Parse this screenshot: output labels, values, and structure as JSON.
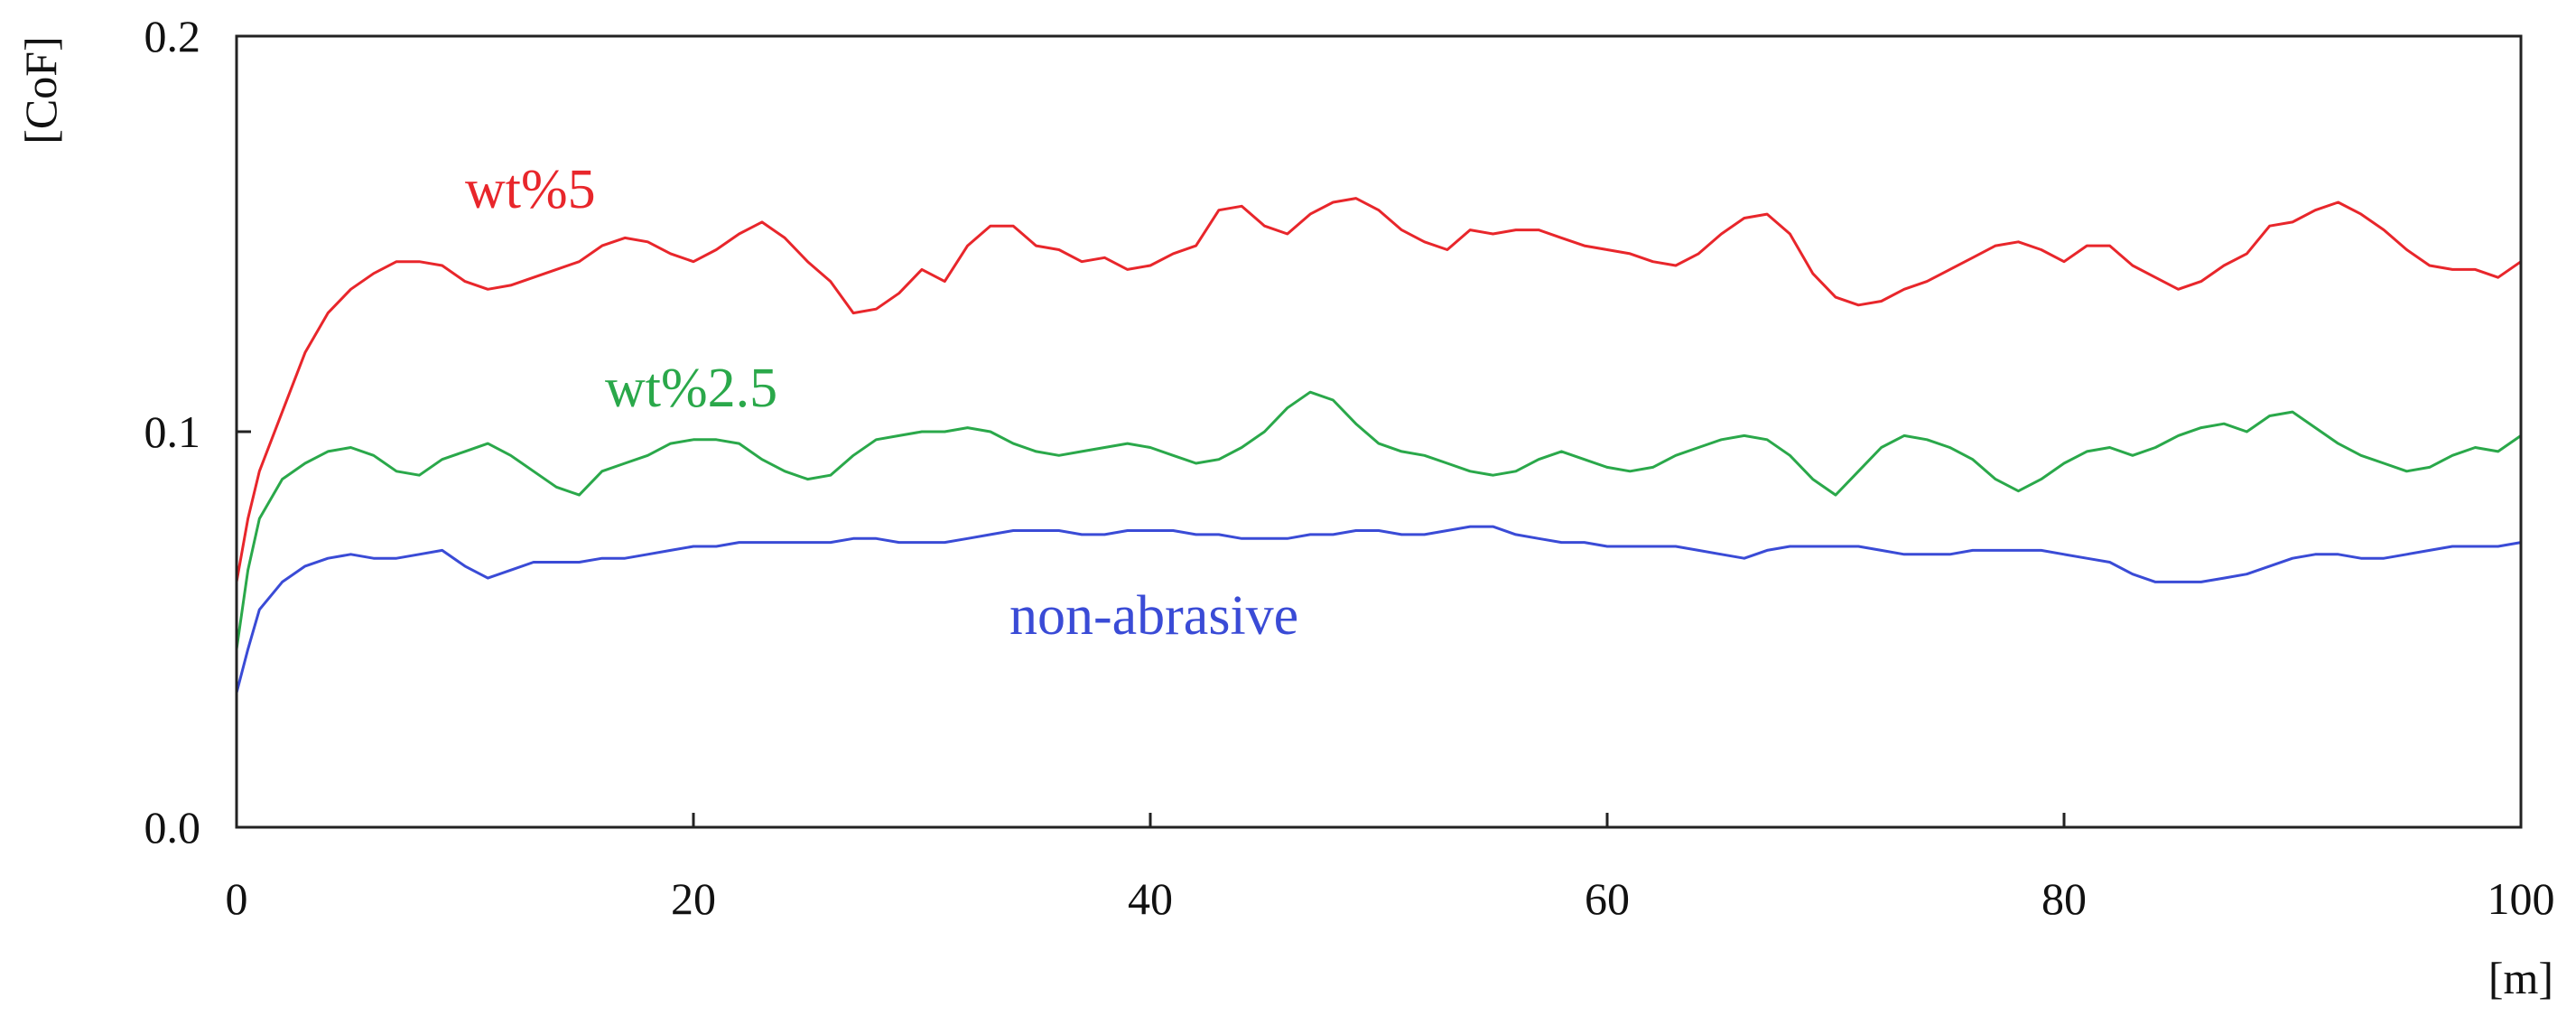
{
  "chart_data": {
    "type": "line",
    "title": "",
    "xlabel": "[m]",
    "ylabel": "[CoF]",
    "xlim": [
      0,
      100
    ],
    "ylim": [
      0,
      0.2
    ],
    "x_ticks": [
      0,
      20,
      40,
      60,
      80,
      100
    ],
    "x_tick_labels": [
      "0",
      "20",
      "40",
      "60",
      "80",
      "100"
    ],
    "y_ticks": [
      0,
      0.1,
      0.2
    ],
    "y_tick_labels": [
      "0.0",
      "0.1",
      "0.2"
    ],
    "grid": false,
    "legend": "none (series labelled inline)",
    "series": [
      {
        "name": "wt%5",
        "color": "#e8262b",
        "x": [
          0,
          0.5,
          1,
          2,
          3,
          4,
          5,
          6,
          7,
          8,
          9,
          10,
          11,
          12,
          13,
          14,
          15,
          16,
          17,
          18,
          19,
          20,
          21,
          22,
          23,
          24,
          25,
          26,
          27,
          28,
          29,
          30,
          31,
          32,
          33,
          34,
          35,
          36,
          37,
          38,
          39,
          40,
          41,
          42,
          43,
          44,
          45,
          46,
          47,
          48,
          49,
          50,
          51,
          52,
          53,
          54,
          55,
          56,
          57,
          58,
          59,
          60,
          61,
          62,
          63,
          64,
          65,
          66,
          67,
          68,
          69,
          70,
          71,
          72,
          73,
          74,
          75,
          76,
          77,
          78,
          79,
          80,
          81,
          82,
          83,
          84,
          85,
          86,
          87,
          88,
          89,
          90,
          91,
          92,
          93,
          94,
          95,
          96,
          97,
          98,
          99,
          100
        ],
        "values": [
          0.062,
          0.078,
          0.09,
          0.105,
          0.12,
          0.13,
          0.136,
          0.14,
          0.143,
          0.143,
          0.142,
          0.138,
          0.136,
          0.137,
          0.139,
          0.141,
          0.143,
          0.147,
          0.149,
          0.148,
          0.145,
          0.143,
          0.146,
          0.15,
          0.153,
          0.149,
          0.143,
          0.138,
          0.13,
          0.131,
          0.135,
          0.141,
          0.138,
          0.147,
          0.152,
          0.152,
          0.147,
          0.146,
          0.143,
          0.144,
          0.141,
          0.142,
          0.145,
          0.147,
          0.156,
          0.157,
          0.152,
          0.15,
          0.155,
          0.158,
          0.159,
          0.156,
          0.151,
          0.148,
          0.146,
          0.151,
          0.15,
          0.151,
          0.151,
          0.149,
          0.147,
          0.146,
          0.145,
          0.143,
          0.142,
          0.145,
          0.15,
          0.154,
          0.155,
          0.15,
          0.14,
          0.134,
          0.132,
          0.133,
          0.136,
          0.138,
          0.141,
          0.144,
          0.147,
          0.148,
          0.146,
          0.143,
          0.147,
          0.147,
          0.142,
          0.139,
          0.136,
          0.138,
          0.142,
          0.145,
          0.152,
          0.153,
          0.156,
          0.158,
          0.155,
          0.151,
          0.146,
          0.142,
          0.141,
          0.141,
          0.139,
          0.143
        ]
      },
      {
        "name": "wt%2.5",
        "color": "#2aa84a",
        "x": [
          0,
          0.5,
          1,
          2,
          3,
          4,
          5,
          6,
          7,
          8,
          9,
          10,
          11,
          12,
          13,
          14,
          15,
          16,
          17,
          18,
          19,
          20,
          21,
          22,
          23,
          24,
          25,
          26,
          27,
          28,
          29,
          30,
          31,
          32,
          33,
          34,
          35,
          36,
          37,
          38,
          39,
          40,
          41,
          42,
          43,
          44,
          45,
          46,
          47,
          48,
          49,
          50,
          51,
          52,
          53,
          54,
          55,
          56,
          57,
          58,
          59,
          60,
          61,
          62,
          63,
          64,
          65,
          66,
          67,
          68,
          69,
          70,
          71,
          72,
          73,
          74,
          75,
          76,
          77,
          78,
          79,
          80,
          81,
          82,
          83,
          84,
          85,
          86,
          87,
          88,
          89,
          90,
          91,
          92,
          93,
          94,
          95,
          96,
          97,
          98,
          99,
          100
        ],
        "values": [
          0.045,
          0.065,
          0.078,
          0.088,
          0.092,
          0.095,
          0.096,
          0.094,
          0.09,
          0.089,
          0.093,
          0.095,
          0.097,
          0.094,
          0.09,
          0.086,
          0.084,
          0.09,
          0.092,
          0.094,
          0.097,
          0.098,
          0.098,
          0.097,
          0.093,
          0.09,
          0.088,
          0.089,
          0.094,
          0.098,
          0.099,
          0.1,
          0.1,
          0.101,
          0.1,
          0.097,
          0.095,
          0.094,
          0.095,
          0.096,
          0.097,
          0.096,
          0.094,
          0.092,
          0.093,
          0.096,
          0.1,
          0.106,
          0.11,
          0.108,
          0.102,
          0.097,
          0.095,
          0.094,
          0.092,
          0.09,
          0.089,
          0.09,
          0.093,
          0.095,
          0.093,
          0.091,
          0.09,
          0.091,
          0.094,
          0.096,
          0.098,
          0.099,
          0.098,
          0.094,
          0.088,
          0.084,
          0.09,
          0.096,
          0.099,
          0.098,
          0.096,
          0.093,
          0.088,
          0.085,
          0.088,
          0.092,
          0.095,
          0.096,
          0.094,
          0.096,
          0.099,
          0.101,
          0.102,
          0.1,
          0.104,
          0.105,
          0.101,
          0.097,
          0.094,
          0.092,
          0.09,
          0.091,
          0.094,
          0.096,
          0.095,
          0.099
        ]
      },
      {
        "name": "non-abrasive",
        "color": "#3a4bd6",
        "x": [
          0,
          0.5,
          1,
          2,
          3,
          4,
          5,
          6,
          7,
          8,
          9,
          10,
          11,
          12,
          13,
          14,
          15,
          16,
          17,
          18,
          19,
          20,
          21,
          22,
          23,
          24,
          25,
          26,
          27,
          28,
          29,
          30,
          31,
          32,
          33,
          34,
          35,
          36,
          37,
          38,
          39,
          40,
          41,
          42,
          43,
          44,
          45,
          46,
          47,
          48,
          49,
          50,
          51,
          52,
          53,
          54,
          55,
          56,
          57,
          58,
          59,
          60,
          61,
          62,
          63,
          64,
          65,
          66,
          67,
          68,
          69,
          70,
          71,
          72,
          73,
          74,
          75,
          76,
          77,
          78,
          79,
          80,
          81,
          82,
          83,
          84,
          85,
          86,
          87,
          88,
          89,
          90,
          91,
          92,
          93,
          94,
          95,
          96,
          97,
          98,
          99,
          100
        ],
        "values": [
          0.034,
          0.045,
          0.055,
          0.062,
          0.066,
          0.068,
          0.069,
          0.068,
          0.068,
          0.069,
          0.07,
          0.066,
          0.063,
          0.065,
          0.067,
          0.067,
          0.067,
          0.068,
          0.068,
          0.069,
          0.07,
          0.071,
          0.071,
          0.072,
          0.072,
          0.072,
          0.072,
          0.072,
          0.073,
          0.073,
          0.072,
          0.072,
          0.072,
          0.073,
          0.074,
          0.075,
          0.075,
          0.075,
          0.074,
          0.074,
          0.075,
          0.075,
          0.075,
          0.074,
          0.074,
          0.073,
          0.073,
          0.073,
          0.074,
          0.074,
          0.075,
          0.075,
          0.074,
          0.074,
          0.075,
          0.076,
          0.076,
          0.074,
          0.073,
          0.072,
          0.072,
          0.071,
          0.071,
          0.071,
          0.071,
          0.07,
          0.069,
          0.068,
          0.07,
          0.071,
          0.071,
          0.071,
          0.071,
          0.07,
          0.069,
          0.069,
          0.069,
          0.07,
          0.07,
          0.07,
          0.07,
          0.069,
          0.068,
          0.067,
          0.064,
          0.062,
          0.062,
          0.062,
          0.063,
          0.064,
          0.066,
          0.068,
          0.069,
          0.069,
          0.068,
          0.068,
          0.069,
          0.07,
          0.071,
          0.071,
          0.071,
          0.072
        ]
      }
    ]
  }
}
